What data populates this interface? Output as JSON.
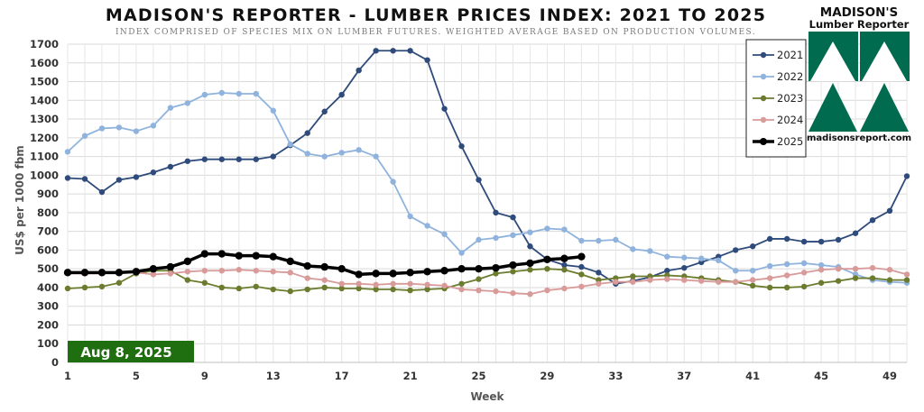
{
  "header": {
    "title": "MADISON'S REPORTER - LUMBER PRICES INDEX: 2021 TO 2025",
    "subtitle": "INDEX COMPRISED OF SPECIES MIX ON LUMBER FUTURES. WEIGHTED AVERAGE BASED ON PRODUCTION VOLUMES."
  },
  "logo": {
    "line1": "MADISON'S",
    "line2": "Lumber Reporter",
    "url": "madisonsreport.com",
    "color": "#006b4f"
  },
  "date_badge": {
    "label": "Aug 8, 2025",
    "color": "#1f6f10"
  },
  "chart_data": {
    "type": "line",
    "title": "MADISON'S REPORTER - LUMBER PRICES INDEX: 2021 TO 2025",
    "xlabel": "Week",
    "ylabel": "US$ per 1000 fbm",
    "xlim": [
      1,
      50
    ],
    "ylim": [
      0,
      1700
    ],
    "x_ticks": [
      1,
      5,
      9,
      13,
      17,
      21,
      25,
      29,
      33,
      37,
      41,
      45,
      49
    ],
    "y_ticks": [
      0,
      100,
      200,
      300,
      400,
      500,
      600,
      700,
      800,
      900,
      1000,
      1100,
      1200,
      1300,
      1400,
      1500,
      1600,
      1700
    ],
    "grid": true,
    "legend_position": "top-right",
    "series": [
      {
        "name": "2021",
        "color": "#2f4b7c",
        "x": [
          1,
          2,
          3,
          4,
          5,
          6,
          7,
          8,
          9,
          10,
          11,
          12,
          13,
          14,
          15,
          16,
          17,
          18,
          19,
          20,
          21,
          22,
          23,
          24,
          25,
          26,
          27,
          28,
          29,
          30,
          31,
          32,
          33,
          34,
          35,
          36,
          37,
          38,
          39,
          40,
          41,
          42,
          43,
          44,
          45,
          46,
          47,
          48,
          49,
          50
        ],
        "values": [
          985,
          980,
          910,
          975,
          990,
          1015,
          1045,
          1075,
          1085,
          1085,
          1085,
          1085,
          1100,
          1160,
          1225,
          1340,
          1430,
          1560,
          1665,
          1665,
          1665,
          1615,
          1355,
          1155,
          975,
          800,
          775,
          620,
          550,
          520,
          510,
          480,
          420,
          435,
          455,
          490,
          505,
          535,
          565,
          600,
          620,
          660,
          660,
          645,
          645,
          655,
          690,
          760,
          810,
          995
        ]
      },
      {
        "name": "2022",
        "color": "#8fb3dd",
        "x": [
          1,
          2,
          3,
          4,
          5,
          6,
          7,
          8,
          9,
          10,
          11,
          12,
          13,
          14,
          15,
          16,
          17,
          18,
          19,
          20,
          21,
          22,
          23,
          24,
          25,
          26,
          27,
          28,
          29,
          30,
          31,
          32,
          33,
          34,
          35,
          36,
          37,
          38,
          39,
          40,
          41,
          42,
          43,
          44,
          45,
          46,
          47,
          48,
          49,
          50
        ],
        "values": [
          1125,
          1210,
          1250,
          1255,
          1235,
          1265,
          1360,
          1385,
          1430,
          1440,
          1435,
          1435,
          1345,
          1165,
          1115,
          1100,
          1120,
          1135,
          1100,
          965,
          780,
          730,
          685,
          585,
          655,
          665,
          680,
          695,
          715,
          710,
          650,
          650,
          655,
          605,
          595,
          565,
          560,
          555,
          545,
          490,
          490,
          515,
          525,
          530,
          520,
          510,
          470,
          440,
          430,
          425
        ]
      },
      {
        "name": "2023",
        "color": "#6b7c2f",
        "x": [
          1,
          2,
          3,
          4,
          5,
          6,
          7,
          8,
          9,
          10,
          11,
          12,
          13,
          14,
          15,
          16,
          17,
          18,
          19,
          20,
          21,
          22,
          23,
          24,
          25,
          26,
          27,
          28,
          29,
          30,
          31,
          32,
          33,
          34,
          35,
          36,
          37,
          38,
          39,
          40,
          41,
          42,
          43,
          44,
          45,
          46,
          47,
          48,
          49,
          50
        ],
        "values": [
          395,
          400,
          405,
          425,
          475,
          490,
          490,
          440,
          425,
          400,
          395,
          405,
          390,
          380,
          390,
          400,
          395,
          395,
          390,
          390,
          385,
          390,
          395,
          420,
          445,
          475,
          485,
          495,
          500,
          495,
          470,
          440,
          450,
          460,
          460,
          465,
          460,
          450,
          440,
          430,
          410,
          400,
          400,
          405,
          425,
          435,
          450,
          450,
          440,
          440
        ]
      },
      {
        "name": "2024",
        "color": "#d99a9a",
        "x": [
          1,
          2,
          3,
          4,
          5,
          6,
          7,
          8,
          9,
          10,
          11,
          12,
          13,
          14,
          15,
          16,
          17,
          18,
          19,
          20,
          21,
          22,
          23,
          24,
          25,
          26,
          27,
          28,
          29,
          30,
          31,
          32,
          33,
          34,
          35,
          36,
          37,
          38,
          39,
          40,
          41,
          42,
          43,
          44,
          45,
          46,
          47,
          48,
          49,
          50
        ],
        "values": [
          475,
          475,
          475,
          480,
          480,
          470,
          475,
          485,
          490,
          490,
          495,
          490,
          485,
          480,
          450,
          440,
          420,
          420,
          415,
          420,
          420,
          415,
          410,
          390,
          385,
          380,
          370,
          365,
          385,
          395,
          405,
          420,
          430,
          430,
          440,
          445,
          440,
          435,
          430,
          430,
          440,
          450,
          465,
          480,
          495,
          500,
          500,
          505,
          495,
          470
        ]
      },
      {
        "name": "2025",
        "color": "#000000",
        "x": [
          1,
          2,
          3,
          4,
          5,
          6,
          7,
          8,
          9,
          10,
          11,
          12,
          13,
          14,
          15,
          16,
          17,
          18,
          19,
          20,
          21,
          22,
          23,
          24,
          25,
          26,
          27,
          28,
          29,
          30,
          31
        ],
        "values": [
          480,
          480,
          480,
          480,
          485,
          500,
          510,
          540,
          580,
          580,
          570,
          570,
          565,
          540,
          515,
          510,
          500,
          470,
          475,
          475,
          480,
          485,
          490,
          500,
          500,
          505,
          520,
          530,
          550,
          555,
          565
        ]
      }
    ]
  }
}
